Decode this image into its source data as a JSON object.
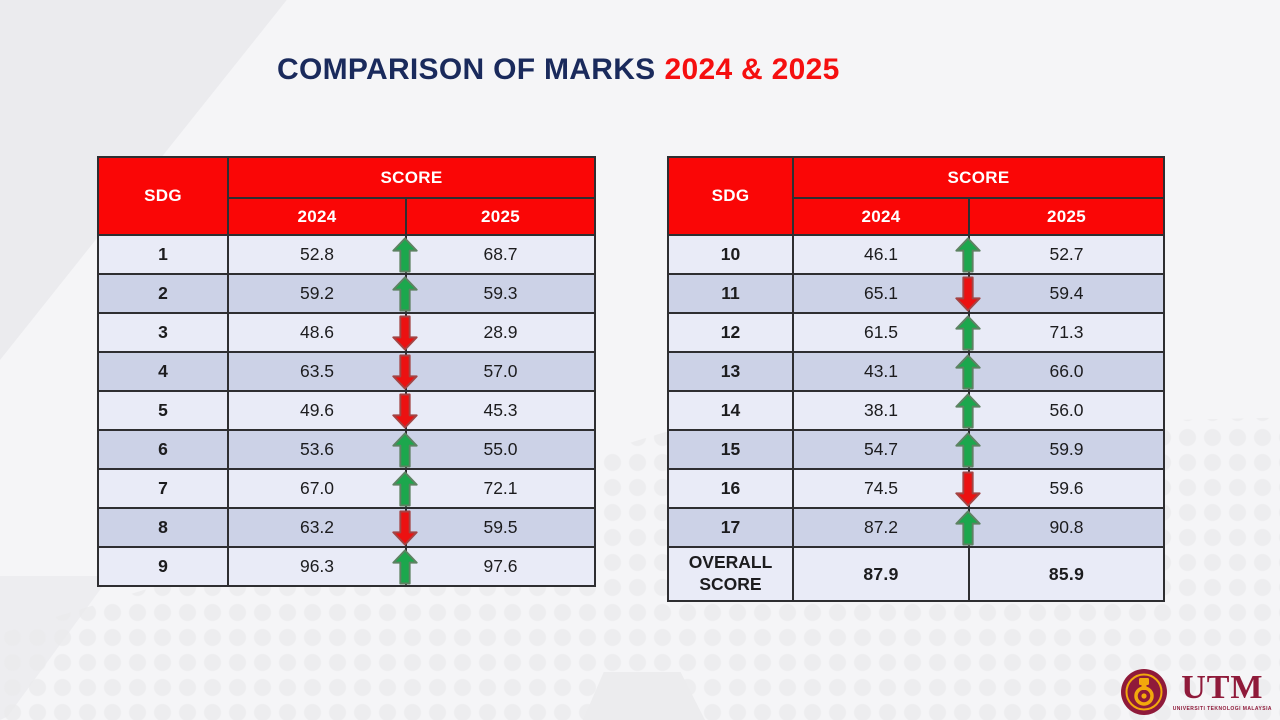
{
  "title": {
    "main": "COMPARISON OF MARKS",
    "highlight": "2024 & 2025"
  },
  "tables": [
    {
      "name": "sdg-1-9",
      "header": {
        "sdg": "SDG",
        "score": "SCORE",
        "year_left": "2024",
        "year_right": "2025"
      },
      "rows": [
        {
          "sdg": "1",
          "score_2024": "52.8",
          "score_2025": "68.7",
          "trend": "up"
        },
        {
          "sdg": "2",
          "score_2024": "59.2",
          "score_2025": "59.3",
          "trend": "up"
        },
        {
          "sdg": "3",
          "score_2024": "48.6",
          "score_2025": "28.9",
          "trend": "down"
        },
        {
          "sdg": "4",
          "score_2024": "63.5",
          "score_2025": "57.0",
          "trend": "down"
        },
        {
          "sdg": "5",
          "score_2024": "49.6",
          "score_2025": "45.3",
          "trend": "down"
        },
        {
          "sdg": "6",
          "score_2024": "53.6",
          "score_2025": "55.0",
          "trend": "up"
        },
        {
          "sdg": "7",
          "score_2024": "67.0",
          "score_2025": "72.1",
          "trend": "up"
        },
        {
          "sdg": "8",
          "score_2024": "63.2",
          "score_2025": "59.5",
          "trend": "down"
        },
        {
          "sdg": "9",
          "score_2024": "96.3",
          "score_2025": "97.6",
          "trend": "up"
        }
      ]
    },
    {
      "name": "sdg-10-17",
      "header": {
        "sdg": "SDG",
        "score": "SCORE",
        "year_left": "2024",
        "year_right": "2025"
      },
      "rows": [
        {
          "sdg": "10",
          "score_2024": "46.1",
          "score_2025": "52.7",
          "trend": "up"
        },
        {
          "sdg": "11",
          "score_2024": "65.1",
          "score_2025": "59.4",
          "trend": "down"
        },
        {
          "sdg": "12",
          "score_2024": "61.5",
          "score_2025": "71.3",
          "trend": "up"
        },
        {
          "sdg": "13",
          "score_2024": "43.1",
          "score_2025": "66.0",
          "trend": "up"
        },
        {
          "sdg": "14",
          "score_2024": "38.1",
          "score_2025": "56.0",
          "trend": "up"
        },
        {
          "sdg": "15",
          "score_2024": "54.7",
          "score_2025": "59.9",
          "trend": "up"
        },
        {
          "sdg": "16",
          "score_2024": "74.5",
          "score_2025": "59.6",
          "trend": "down"
        },
        {
          "sdg": "17",
          "score_2024": "87.2",
          "score_2025": "90.8",
          "trend": "up"
        }
      ],
      "overall": {
        "label": "OVERALL SCORE",
        "score_2024": "87.9",
        "score_2025": "85.9"
      }
    }
  ],
  "logo": {
    "acronym": "UTM",
    "subtitle": "UNIVERSITI TEKNOLOGI MALAYSIA"
  },
  "colors": {
    "title_navy": "#1a2a5c",
    "title_red": "#f50f0f",
    "header_red": "#fa0606",
    "row_light": "#e9ebf7",
    "row_dark": "#ccd2e7",
    "arrow_up_green": "#1ca74d",
    "arrow_down_red": "#ec1111",
    "overall_value_red": "#f40b0b",
    "logo_maroon": "#8f1a3a"
  }
}
